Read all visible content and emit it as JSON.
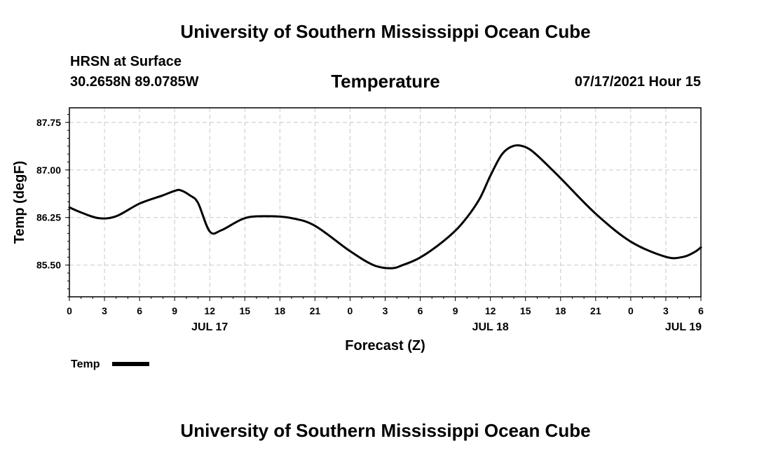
{
  "header": {
    "top_title": "University of Southern Mississippi Ocean Cube",
    "station": "HRSN at Surface",
    "coords": "30.2658N  89.0785W",
    "datetime": "07/17/2021 Hour 15"
  },
  "footer": {
    "bottom_title": "University of Southern Mississippi Ocean Cube"
  },
  "chart_data": {
    "type": "line",
    "title": "Temperature",
    "xlabel": "Forecast (Z)",
    "ylabel": "Temp (degF)",
    "xlim": [
      0,
      54
    ],
    "ylim": [
      85.0,
      87.98
    ],
    "grid": true,
    "x_ticks": [
      0,
      3,
      6,
      9,
      12,
      15,
      18,
      21,
      24,
      27,
      30,
      33,
      36,
      39,
      42,
      45,
      48,
      51,
      54
    ],
    "x_tick_labels": [
      "0",
      "3",
      "6",
      "9",
      "12",
      "15",
      "18",
      "21",
      "0",
      "3",
      "6",
      "9",
      "12",
      "15",
      "18",
      "21",
      "0",
      "3",
      "6"
    ],
    "day_labels": [
      {
        "x": 12,
        "label": "JUL 17"
      },
      {
        "x": 36,
        "label": "JUL 18"
      },
      {
        "x": 52.5,
        "label": "JUL 19"
      }
    ],
    "y_ticks": [
      85.5,
      86.25,
      87.0,
      87.75
    ],
    "y_tick_labels": [
      "85.50",
      "86.25",
      "87.00",
      "87.75"
    ],
    "series": [
      {
        "name": "Temp",
        "x": [
          0,
          1,
          2.5,
          4,
          6,
          8,
          9,
          9.5,
          10.3,
          11,
          12,
          13,
          15,
          17,
          19,
          21,
          24,
          26,
          27.5,
          28.5,
          30,
          32,
          33.5,
          35,
          36,
          37,
          38,
          39,
          40,
          42,
          45,
          48,
          51,
          52.5,
          53.5,
          54
        ],
        "y": [
          86.41,
          86.33,
          86.24,
          86.27,
          86.47,
          86.6,
          86.67,
          86.68,
          86.6,
          86.48,
          86.03,
          86.05,
          86.24,
          86.27,
          86.24,
          86.12,
          85.72,
          85.5,
          85.45,
          85.5,
          85.62,
          85.88,
          86.14,
          86.52,
          86.91,
          87.25,
          87.38,
          87.36,
          87.23,
          86.87,
          86.31,
          85.87,
          85.63,
          85.63,
          85.71,
          85.78
        ]
      }
    ],
    "legend": [
      {
        "label": "Temp"
      }
    ],
    "legend_placement": "bottom-left"
  }
}
